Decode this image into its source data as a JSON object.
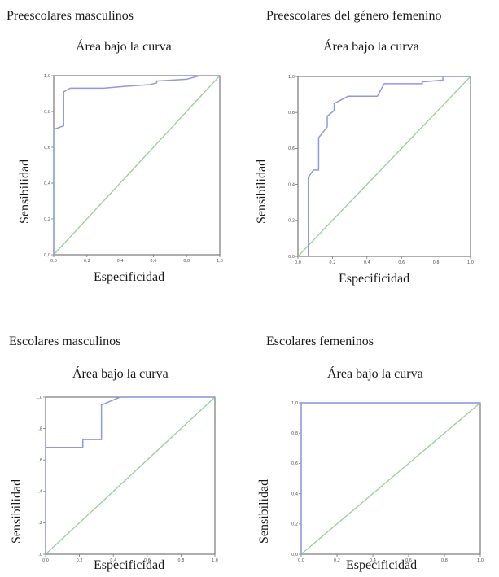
{
  "colors": {
    "roc": "#8f9be0",
    "diagonal": "#9ad49a",
    "frame": "#777777",
    "frame_dark": "#555555"
  },
  "chart_data": [
    {
      "type": "line",
      "group_title": "Preescolares masculinos",
      "title": "Área bajo la curva",
      "xlabel": "Especificidad",
      "ylabel": "Sensibilidad",
      "xlim": [
        0,
        1
      ],
      "ylim": [
        0,
        1
      ],
      "xticks": [
        "0,0",
        "0,2",
        "0,4",
        "0,6",
        "0,8",
        "1,0"
      ],
      "yticks": [
        "0,0",
        "0,2",
        "0,4",
        "0,6",
        "0,8",
        "1,0"
      ],
      "series": [
        {
          "x": [
            0,
            0,
            0.06,
            0.06,
            0.1,
            0.1,
            0.3,
            0.42,
            0.58,
            0.62,
            0.62,
            0.8,
            0.88,
            1.0
          ],
          "y": [
            0,
            0.7,
            0.72,
            0.91,
            0.93,
            0.93,
            0.93,
            0.94,
            0.95,
            0.96,
            0.97,
            0.98,
            1.0,
            1.0
          ]
        },
        {
          "x": [
            0,
            1
          ],
          "y": [
            0,
            1
          ]
        }
      ]
    },
    {
      "type": "line",
      "group_title": "Preescolares del género femenino",
      "title": "Área bajo la curva",
      "xlabel": "Especificidad",
      "ylabel": "Sensibilidad",
      "xlim": [
        0,
        1
      ],
      "ylim": [
        0,
        1
      ],
      "xticks": [
        "0,0",
        "0,2",
        "0,4",
        "0,6",
        "0,8",
        "1,0"
      ],
      "yticks": [
        "0,0",
        "0,2",
        "0,4",
        "0,6",
        "0,8",
        "1,0"
      ],
      "series": [
        {
          "x": [
            0.06,
            0.06,
            0.09,
            0.12,
            0.12,
            0.17,
            0.17,
            0.21,
            0.21,
            0.29,
            0.38,
            0.38,
            0.46,
            0.5,
            0.5,
            0.72,
            0.72,
            0.84,
            0.84,
            1.0
          ],
          "y": [
            0,
            0.44,
            0.48,
            0.48,
            0.66,
            0.72,
            0.78,
            0.81,
            0.85,
            0.89,
            0.89,
            0.89,
            0.89,
            0.96,
            0.96,
            0.96,
            0.97,
            0.98,
            1.0,
            1.0
          ]
        },
        {
          "x": [
            0,
            1
          ],
          "y": [
            0,
            1
          ]
        }
      ]
    },
    {
      "type": "line",
      "group_title": "Escolares masculinos",
      "title": "Área bajo la curva",
      "xlabel": "Especificidad",
      "ylabel": "Sensibilidad",
      "xlim": [
        0,
        1
      ],
      "ylim": [
        0,
        1
      ],
      "xticks": [
        "0,0",
        "0,2",
        "0,4",
        "0,6",
        "0,8",
        "1,0"
      ],
      "yticks": [
        ",0",
        ",2",
        ",4",
        ",6",
        ",8",
        "1,0"
      ],
      "series": [
        {
          "x": [
            0,
            0,
            0.22,
            0.22,
            0.33,
            0.33,
            0.44,
            0.44,
            1.0
          ],
          "y": [
            0,
            0.68,
            0.68,
            0.73,
            0.73,
            0.95,
            1.0,
            1.0,
            1.0
          ]
        },
        {
          "x": [
            0,
            1
          ],
          "y": [
            0,
            1
          ]
        }
      ]
    },
    {
      "type": "line",
      "group_title": "Escolares femeninos",
      "title": "Área bajo la curva",
      "xlabel": "Especificidad",
      "ylabel": "Sensibilidad",
      "xlim": [
        0,
        1
      ],
      "ylim": [
        0,
        1
      ],
      "xticks": [
        "0,0",
        "0,2",
        "0,4",
        "0,6",
        "0,8",
        "1,0"
      ],
      "yticks": [
        "0,0",
        "0,2",
        "0,4",
        "0,6",
        "0,8",
        "1,0"
      ],
      "series": [
        {
          "x": [
            0,
            0,
            1.0
          ],
          "y": [
            0,
            1.0,
            1.0
          ]
        },
        {
          "x": [
            0,
            1
          ],
          "y": [
            0,
            1
          ]
        }
      ]
    }
  ]
}
